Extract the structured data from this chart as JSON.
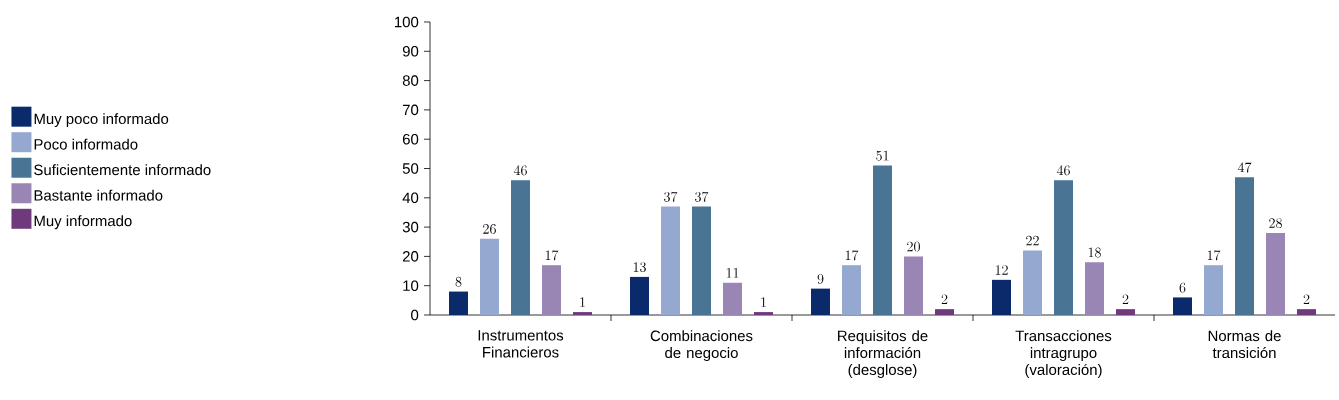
{
  "chart_data": {
    "type": "bar",
    "categories": [
      "Instrumentos Financieros",
      "Combinaciones de negocio",
      "Requisitos de información (desglose)",
      "Transacciones intragrupo (valoración)",
      "Normas de transición"
    ],
    "series": [
      {
        "name": "Muy poco informado",
        "color": "#0a2a6b",
        "values": [
          8,
          13,
          9,
          12,
          6
        ]
      },
      {
        "name": "Poco informado",
        "color": "#94a8d0",
        "values": [
          26,
          37,
          17,
          22,
          17
        ]
      },
      {
        "name": "Suficientemente informado",
        "color": "#4a7494",
        "values": [
          46,
          37,
          51,
          46,
          47
        ]
      },
      {
        "name": "Bastante informado",
        "color": "#9a86b4",
        "values": [
          17,
          11,
          20,
          18,
          28
        ]
      },
      {
        "name": "Muy informado",
        "color": "#6e3a7c",
        "values": [
          1,
          1,
          2,
          2,
          2
        ]
      }
    ],
    "ylim": [
      0,
      100
    ],
    "yticks": [
      0,
      10,
      20,
      30,
      40,
      50,
      60,
      70,
      80,
      90,
      100
    ],
    "data_labels": true,
    "legend": "left"
  }
}
